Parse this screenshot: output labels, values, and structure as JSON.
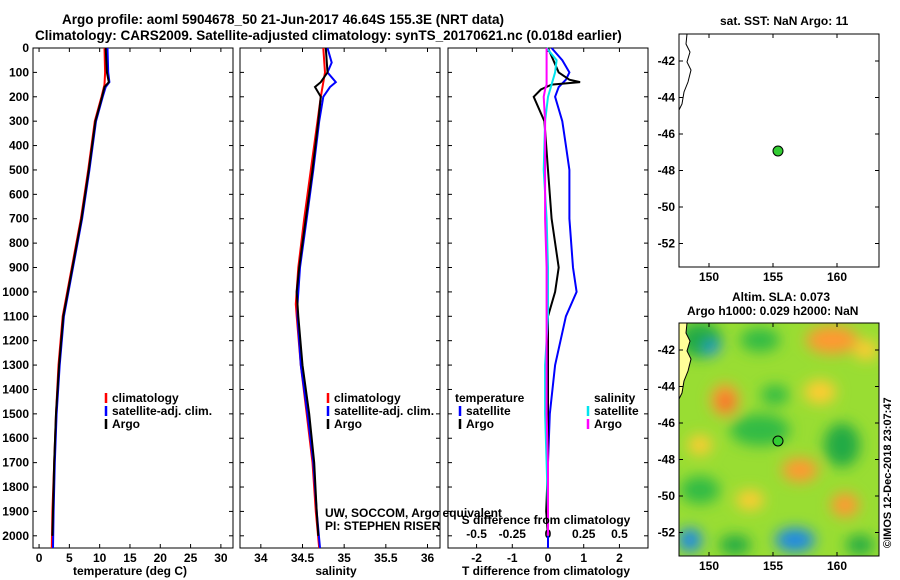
{
  "header": {
    "line1": "Argo profile: aoml 5904678_50 21-Jun-2017 46.64S 155.3E (NRT data)",
    "line2": "Climatology: CARS2009. Satellite-adjusted climatology: synTS_20170621.nc (0.018d earlier)"
  },
  "depth_ticks": [
    "0",
    "100",
    "200",
    "300",
    "400",
    "500",
    "600",
    "700",
    "800",
    "900",
    "1000",
    "1100",
    "1200",
    "1300",
    "1400",
    "1500",
    "1600",
    "1700",
    "1800",
    "1900",
    "2000"
  ],
  "colors": {
    "climatology": "#ff0000",
    "satellite": "#0000ff",
    "argo": "#000000",
    "satellite_s": "#00e5ee",
    "argo_s": "#ff00ff"
  },
  "credits": {
    "line1": "UW, SOCCOM, Argo equivalent",
    "line2": "PI: STEPHEN RISER"
  },
  "side_label": "©IMOS 12-Dec-2018 23:07:47",
  "map_top": {
    "title": "sat. SST: NaN Argo: 11",
    "xticks": [
      "150",
      "155",
      "160"
    ],
    "yticks": [
      "-42",
      "-44",
      "-46",
      "-48",
      "-50",
      "-52"
    ]
  },
  "map_bottom": {
    "title1": "Altim. SLA: 0.073",
    "title2": "Argo h1000: 0.029 h2000: NaN",
    "xticks": [
      "150",
      "155",
      "160"
    ],
    "yticks": [
      "-42",
      "-44",
      "-46",
      "-48",
      "-50",
      "-52"
    ]
  },
  "chart_data": [
    {
      "type": "line",
      "xlabel": "temperature (deg C)",
      "xticks": [
        "0",
        "5",
        "10",
        "15",
        "20",
        "25",
        "30"
      ],
      "xlim": [
        -1,
        32
      ],
      "ylim": [
        2050,
        0
      ],
      "legend": [
        "climatology",
        "satellite-adj. clim.",
        "Argo"
      ],
      "series": [
        {
          "name": "climatology",
          "depth": [
            0,
            100,
            150,
            200,
            300,
            500,
            700,
            900,
            1100,
            1300,
            1500,
            1700,
            1900,
            2050
          ],
          "values": [
            10.8,
            10.9,
            10.8,
            10.3,
            9.2,
            8.1,
            6.9,
            5.4,
            3.9,
            3.2,
            2.8,
            2.5,
            2.2,
            2.1
          ]
        },
        {
          "name": "satellite-adj. clim.",
          "depth": [
            0,
            100,
            140,
            160,
            200,
            300,
            500,
            700,
            900,
            1100,
            1300,
            1500,
            1700,
            1900,
            2050
          ],
          "values": [
            11.3,
            11.4,
            11.6,
            11.0,
            10.5,
            9.4,
            8.3,
            7.1,
            5.6,
            4.1,
            3.4,
            2.9,
            2.6,
            2.4,
            2.3
          ]
        },
        {
          "name": "Argo",
          "depth": [
            0,
            100,
            140,
            160,
            200,
            300,
            500,
            700,
            900,
            1100,
            1300,
            1500,
            1700,
            1900,
            2000
          ],
          "values": [
            11.0,
            11.2,
            11.5,
            10.8,
            10.4,
            9.3,
            8.2,
            7.0,
            5.5,
            4.0,
            3.3,
            2.8,
            2.5,
            2.3,
            2.2
          ]
        }
      ]
    },
    {
      "type": "line",
      "xlabel": "salinity",
      "xticks": [
        "34",
        "34.5",
        "35",
        "35.5",
        "36"
      ],
      "xlim": [
        33.75,
        36.15
      ],
      "ylim": [
        2050,
        0
      ],
      "legend": [
        "climatology",
        "satellite-adj. clim.",
        "Argo"
      ],
      "series": [
        {
          "name": "climatology",
          "depth": [
            0,
            100,
            200,
            300,
            500,
            700,
            900,
            1050,
            1100,
            1300,
            1500,
            1700,
            1900,
            2050
          ],
          "values": [
            34.75,
            34.77,
            34.72,
            34.68,
            34.6,
            34.52,
            34.45,
            34.42,
            34.43,
            34.48,
            34.55,
            34.62,
            34.66,
            34.7
          ]
        },
        {
          "name": "satellite-adj. clim.",
          "depth": [
            0,
            60,
            100,
            140,
            160,
            200,
            300,
            500,
            700,
            900,
            1050,
            1100,
            1300,
            1500,
            1700,
            1900,
            2050
          ],
          "values": [
            34.8,
            34.85,
            34.8,
            34.9,
            34.83,
            34.75,
            34.7,
            34.63,
            34.55,
            34.47,
            34.44,
            34.44,
            34.48,
            34.56,
            34.63,
            34.67,
            34.71
          ]
        },
        {
          "name": "Argo",
          "depth": [
            0,
            100,
            140,
            160,
            200,
            300,
            500,
            700,
            900,
            1000,
            1100,
            1300,
            1500,
            1700,
            1900,
            2000
          ],
          "values": [
            34.78,
            34.8,
            34.72,
            34.65,
            34.72,
            34.69,
            34.62,
            34.54,
            34.46,
            34.43,
            34.45,
            34.5,
            34.58,
            34.64,
            34.67,
            34.69
          ]
        }
      ]
    },
    {
      "type": "line",
      "xlabel": "T difference from climatology",
      "xlabel_top": "S difference from climatology",
      "xticks": [
        "-2",
        "-1",
        "0",
        "1",
        "2"
      ],
      "xticks_top": [
        "-0.5",
        "-0.25",
        "0",
        "0.25",
        "0.5"
      ],
      "xlim": [
        -2.8,
        2.8
      ],
      "ylim": [
        2050,
        0
      ],
      "legend_temperature_title": "temperature",
      "legend_salinity_title": "salinity",
      "legend": [
        "satellite",
        "Argo",
        "satellite",
        "Argo"
      ],
      "series": [
        {
          "name": "satellite",
          "group": "temperature",
          "depth": [
            0,
            50,
            100,
            130,
            160,
            200,
            300,
            400,
            500,
            700,
            900,
            1000,
            1100,
            1300,
            1500,
            1700,
            1900,
            2050
          ],
          "values": [
            0.1,
            0.4,
            0.6,
            0.5,
            0.3,
            0.2,
            0.4,
            0.5,
            0.6,
            0.6,
            0.7,
            0.8,
            0.5,
            0.2,
            0.05,
            0.0,
            0.0,
            0.0
          ]
        },
        {
          "name": "Argo",
          "group": "temperature",
          "depth": [
            0,
            100,
            130,
            140,
            150,
            170,
            200,
            300,
            500,
            700,
            900,
            1000,
            1100,
            1300,
            1500,
            1700,
            1900,
            2000
          ],
          "values": [
            0.0,
            0.3,
            0.6,
            0.9,
            0.1,
            -0.2,
            -0.4,
            -0.1,
            0.0,
            0.1,
            0.3,
            0.2,
            0.0,
            0.0,
            0.0,
            0.0,
            -0.05,
            0.0
          ]
        },
        {
          "name": "satellite",
          "group": "salinity",
          "depth": [
            0,
            50,
            100,
            200,
            300,
            500,
            700,
            900,
            1000,
            1100,
            1300,
            1500,
            1700,
            1900,
            2000
          ],
          "values": [
            -0.01,
            0.06,
            0.05,
            0.0,
            -0.02,
            -0.03,
            -0.01,
            0.0,
            0.0,
            0.0,
            -0.02,
            -0.02,
            -0.01,
            0.0,
            0.0
          ]
        },
        {
          "name": "Argo",
          "group": "salinity",
          "depth": [
            0,
            60,
            100,
            150,
            170,
            200,
            300,
            500,
            700,
            900,
            1000,
            1100,
            1300,
            1500,
            1700,
            1900,
            2000
          ],
          "values": [
            -0.01,
            -0.01,
            -0.01,
            -0.01,
            -0.02,
            -0.03,
            -0.02,
            -0.02,
            -0.02,
            -0.01,
            -0.01,
            -0.01,
            -0.01,
            -0.01,
            0.0,
            0.0,
            0.0
          ]
        }
      ]
    }
  ]
}
